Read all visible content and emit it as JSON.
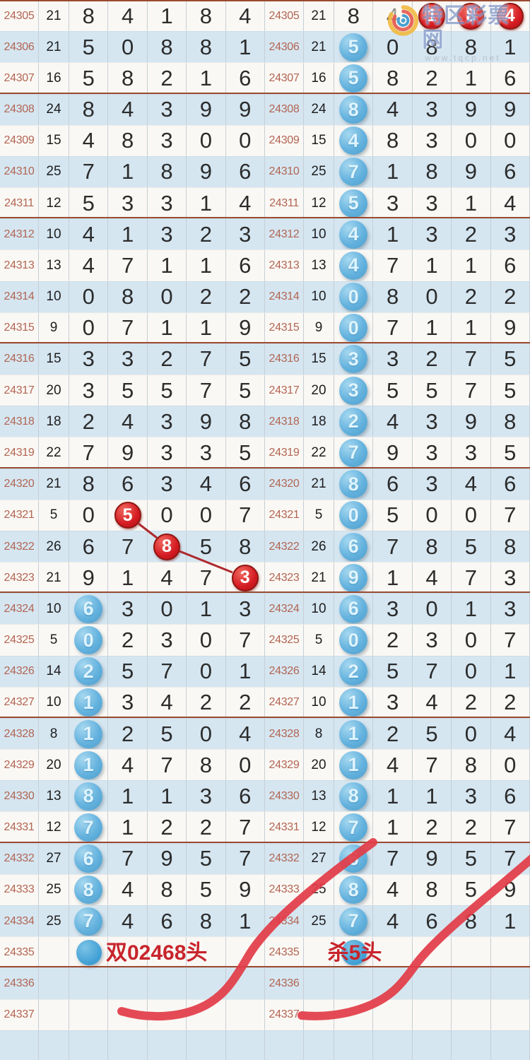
{
  "watermark": {
    "site_name": "特区彩票网",
    "url": "www.tqcp.net"
  },
  "colors": {
    "row_white": "#faf8f4",
    "row_blue": "#d5e6f1",
    "period_text": "#b26553",
    "digit_text": "#2c2c2c",
    "group_line": "#9a4a30",
    "blue_badge": "#64b2de",
    "red_badge": "#d41b22",
    "note_red": "#c8242c",
    "curve_red": "#e23c48"
  },
  "chart_data": {
    "type": "table",
    "columns": [
      "period",
      "sum",
      "digit1",
      "digit2",
      "digit3",
      "digit4",
      "digit5"
    ],
    "rows": [
      {
        "period": "24305",
        "sum": "21",
        "digits": [
          "8",
          "4",
          "1",
          "8",
          "4"
        ],
        "left": [
          "",
          "",
          "",
          "",
          ""
        ],
        "right": [
          "",
          "",
          "red",
          "red",
          "red"
        ]
      },
      {
        "period": "24306",
        "sum": "21",
        "digits": [
          "5",
          "0",
          "8",
          "8",
          "1"
        ],
        "left": [
          "",
          "",
          "",
          "",
          ""
        ],
        "right": [
          "blue",
          "",
          "",
          "",
          ""
        ]
      },
      {
        "period": "24307",
        "sum": "16",
        "digits": [
          "5",
          "8",
          "2",
          "1",
          "6"
        ],
        "left": [
          "",
          "",
          "",
          "",
          ""
        ],
        "right": [
          "blue",
          "",
          "",
          "",
          ""
        ]
      },
      {
        "period": "24308",
        "sum": "24",
        "digits": [
          "8",
          "4",
          "3",
          "9",
          "9"
        ],
        "left": [
          "",
          "",
          "",
          "",
          ""
        ],
        "right": [
          "blue",
          "",
          "",
          "",
          ""
        ]
      },
      {
        "period": "24309",
        "sum": "15",
        "digits": [
          "4",
          "8",
          "3",
          "0",
          "0"
        ],
        "left": [
          "",
          "",
          "",
          "",
          ""
        ],
        "right": [
          "blue",
          "",
          "",
          "",
          ""
        ]
      },
      {
        "period": "24310",
        "sum": "25",
        "digits": [
          "7",
          "1",
          "8",
          "9",
          "6"
        ],
        "left": [
          "",
          "",
          "",
          "",
          ""
        ],
        "right": [
          "blue",
          "",
          "",
          "",
          ""
        ]
      },
      {
        "period": "24311",
        "sum": "12",
        "digits": [
          "5",
          "3",
          "3",
          "1",
          "4"
        ],
        "left": [
          "",
          "",
          "",
          "",
          ""
        ],
        "right": [
          "blue",
          "",
          "",
          "",
          ""
        ]
      },
      {
        "period": "24312",
        "sum": "10",
        "digits": [
          "4",
          "1",
          "3",
          "2",
          "3"
        ],
        "left": [
          "",
          "",
          "",
          "",
          ""
        ],
        "right": [
          "blue",
          "",
          "",
          "",
          ""
        ]
      },
      {
        "period": "24313",
        "sum": "13",
        "digits": [
          "4",
          "7",
          "1",
          "1",
          "6"
        ],
        "left": [
          "",
          "",
          "",
          "",
          ""
        ],
        "right": [
          "blue",
          "",
          "",
          "",
          ""
        ]
      },
      {
        "period": "24314",
        "sum": "10",
        "digits": [
          "0",
          "8",
          "0",
          "2",
          "2"
        ],
        "left": [
          "",
          "",
          "",
          "",
          ""
        ],
        "right": [
          "blue",
          "",
          "",
          "",
          ""
        ]
      },
      {
        "period": "24315",
        "sum": "9",
        "digits": [
          "0",
          "7",
          "1",
          "1",
          "9"
        ],
        "left": [
          "",
          "",
          "",
          "",
          ""
        ],
        "right": [
          "blue",
          "",
          "",
          "",
          ""
        ]
      },
      {
        "period": "24316",
        "sum": "15",
        "digits": [
          "3",
          "3",
          "2",
          "7",
          "5"
        ],
        "left": [
          "",
          "",
          "",
          "",
          ""
        ],
        "right": [
          "blue",
          "",
          "",
          "",
          ""
        ]
      },
      {
        "period": "24317",
        "sum": "20",
        "digits": [
          "3",
          "5",
          "5",
          "7",
          "5"
        ],
        "left": [
          "",
          "",
          "",
          "",
          ""
        ],
        "right": [
          "blue",
          "",
          "",
          "",
          ""
        ]
      },
      {
        "period": "24318",
        "sum": "18",
        "digits": [
          "2",
          "4",
          "3",
          "9",
          "8"
        ],
        "left": [
          "",
          "",
          "",
          "",
          ""
        ],
        "right": [
          "blue",
          "",
          "",
          "",
          ""
        ]
      },
      {
        "period": "24319",
        "sum": "22",
        "digits": [
          "7",
          "9",
          "3",
          "3",
          "5"
        ],
        "left": [
          "",
          "",
          "",
          "",
          ""
        ],
        "right": [
          "blue",
          "",
          "",
          "",
          ""
        ]
      },
      {
        "period": "24320",
        "sum": "21",
        "digits": [
          "8",
          "6",
          "3",
          "4",
          "6"
        ],
        "left": [
          "",
          "",
          "",
          "",
          ""
        ],
        "right": [
          "blue",
          "",
          "",
          "",
          ""
        ]
      },
      {
        "period": "24321",
        "sum": "5",
        "digits": [
          "0",
          "5",
          "0",
          "0",
          "7"
        ],
        "left": [
          "",
          "red",
          "",
          "",
          ""
        ],
        "right": [
          "blue",
          "",
          "",
          "",
          ""
        ]
      },
      {
        "period": "24322",
        "sum": "26",
        "digits": [
          "6",
          "7",
          "8",
          "5",
          "8"
        ],
        "left": [
          "",
          "",
          "red",
          "",
          ""
        ],
        "right": [
          "blue",
          "",
          "",
          "",
          ""
        ]
      },
      {
        "period": "24323",
        "sum": "21",
        "digits": [
          "9",
          "1",
          "4",
          "7",
          "3"
        ],
        "left": [
          "",
          "",
          "",
          "",
          "red"
        ],
        "right": [
          "blue",
          "",
          "",
          "",
          ""
        ]
      },
      {
        "period": "24324",
        "sum": "10",
        "digits": [
          "6",
          "3",
          "0",
          "1",
          "3"
        ],
        "left": [
          "blue",
          "",
          "",
          "",
          ""
        ],
        "right": [
          "blue",
          "",
          "",
          "",
          ""
        ]
      },
      {
        "period": "24325",
        "sum": "5",
        "digits": [
          "0",
          "2",
          "3",
          "0",
          "7"
        ],
        "left": [
          "blue",
          "",
          "",
          "",
          ""
        ],
        "right": [
          "blue",
          "",
          "",
          "",
          ""
        ]
      },
      {
        "period": "24326",
        "sum": "14",
        "digits": [
          "2",
          "5",
          "7",
          "0",
          "1"
        ],
        "left": [
          "blue",
          "",
          "",
          "",
          ""
        ],
        "right": [
          "blue",
          "",
          "",
          "",
          ""
        ]
      },
      {
        "period": "24327",
        "sum": "10",
        "digits": [
          "1",
          "3",
          "4",
          "2",
          "2"
        ],
        "left": [
          "blue",
          "",
          "",
          "",
          ""
        ],
        "right": [
          "blue",
          "",
          "",
          "",
          ""
        ]
      },
      {
        "period": "24328",
        "sum": "8",
        "digits": [
          "1",
          "2",
          "5",
          "0",
          "4"
        ],
        "left": [
          "blue",
          "",
          "",
          "",
          ""
        ],
        "right": [
          "blue",
          "",
          "",
          "",
          ""
        ]
      },
      {
        "period": "24329",
        "sum": "20",
        "digits": [
          "1",
          "4",
          "7",
          "8",
          "0"
        ],
        "left": [
          "blue",
          "",
          "",
          "",
          ""
        ],
        "right": [
          "blue",
          "",
          "",
          "",
          ""
        ]
      },
      {
        "period": "24330",
        "sum": "13",
        "digits": [
          "8",
          "1",
          "1",
          "3",
          "6"
        ],
        "left": [
          "blue",
          "",
          "",
          "",
          ""
        ],
        "right": [
          "blue",
          "",
          "",
          "",
          ""
        ]
      },
      {
        "period": "24331",
        "sum": "12",
        "digits": [
          "7",
          "1",
          "2",
          "2",
          "7"
        ],
        "left": [
          "blue",
          "",
          "",
          "",
          ""
        ],
        "right": [
          "blue",
          "",
          "",
          "",
          ""
        ]
      },
      {
        "period": "24332",
        "sum": "27",
        "digits": [
          "6",
          "7",
          "9",
          "5",
          "7"
        ],
        "left": [
          "blue",
          "",
          "",
          "",
          ""
        ],
        "right": [
          "blue",
          "",
          "",
          "",
          ""
        ]
      },
      {
        "period": "24333",
        "sum": "25",
        "digits": [
          "8",
          "4",
          "8",
          "5",
          "9"
        ],
        "left": [
          "blue",
          "",
          "",
          "",
          ""
        ],
        "right": [
          "blue",
          "",
          "",
          "",
          ""
        ]
      },
      {
        "period": "24334",
        "sum": "25",
        "digits": [
          "7",
          "4",
          "6",
          "8",
          "1"
        ],
        "left": [
          "blue",
          "",
          "",
          "",
          ""
        ],
        "right": [
          "blue",
          "",
          "",
          "",
          ""
        ]
      }
    ],
    "summary_row": {
      "period": "24335",
      "left_note": "双02468头",
      "right_note": "杀5头"
    },
    "trailing_periods": [
      "24336",
      "24337"
    ]
  }
}
